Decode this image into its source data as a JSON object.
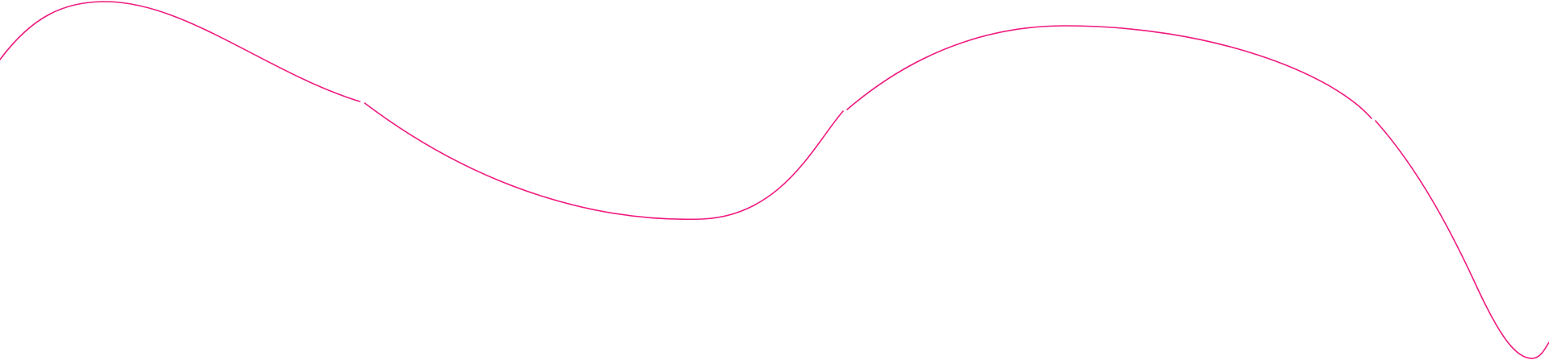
{
  "decoration": {
    "stroke_color": "#ef1a7f",
    "background": "#ffffff"
  }
}
